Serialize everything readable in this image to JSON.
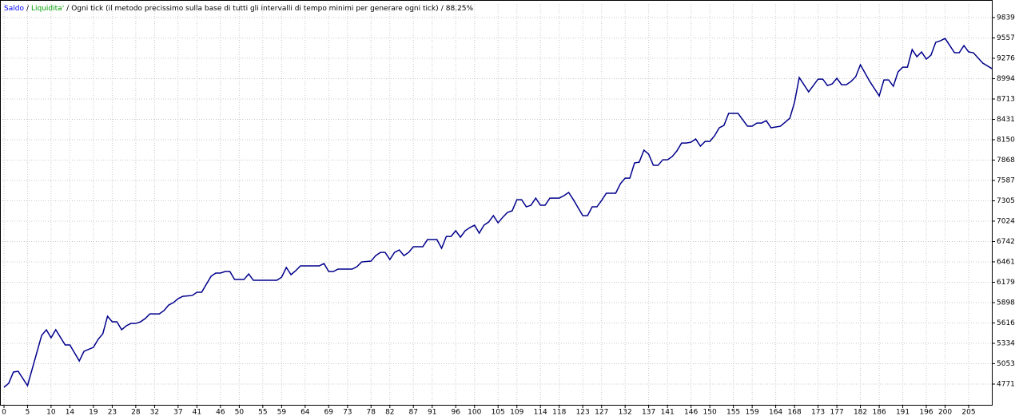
{
  "chart_data": {
    "type": "line",
    "legend": [
      {
        "name": "Saldo",
        "color": "#0000ff"
      },
      {
        "name": "Liquidita'",
        "color": "#00a000"
      }
    ],
    "separator": "/",
    "subtitle": "Ogni tick (il metodo precissimo sulla base di tutti gli intervalli di tempo minimi per generare ogni tick)",
    "quality": "88.25%",
    "x": [
      0,
      1,
      2,
      3,
      5,
      6,
      8,
      9,
      10,
      11,
      13,
      14,
      16,
      17,
      19,
      20,
      21,
      22,
      23,
      24,
      25,
      26,
      27,
      28,
      29,
      30,
      31,
      33,
      34,
      35,
      36,
      37,
      38,
      40,
      41,
      42,
      43,
      44,
      45,
      46,
      47,
      48,
      49,
      51,
      52,
      53,
      58,
      59,
      60,
      61,
      62,
      63,
      67,
      68,
      69,
      70,
      71,
      74,
      75,
      76,
      78,
      79,
      80,
      81,
      82,
      83,
      84,
      85,
      86,
      87,
      89,
      90,
      92,
      93,
      94,
      95,
      96,
      97,
      98,
      99,
      100,
      101,
      102,
      103,
      104,
      105,
      106,
      107,
      108,
      109,
      110,
      111,
      112,
      113,
      114,
      115,
      116,
      118,
      119,
      120,
      121,
      123,
      124,
      125,
      126,
      127,
      128,
      130,
      131,
      132,
      133,
      134,
      135,
      136,
      137,
      138,
      139,
      140,
      141,
      142,
      143,
      144,
      145,
      146,
      147,
      148,
      149,
      150,
      151,
      152,
      153,
      154,
      156,
      158,
      159,
      160,
      161,
      162,
      163,
      165,
      167,
      168,
      169,
      171,
      173,
      174,
      175,
      176,
      177,
      178,
      179,
      180,
      181,
      182,
      184,
      186,
      187,
      188,
      189,
      190,
      191,
      192,
      193,
      194,
      195,
      196,
      197,
      198,
      199,
      200,
      201,
      202,
      203,
      204,
      205,
      206,
      208,
      210
    ],
    "series": [
      {
        "name": "Saldo",
        "color": "#00008b",
        "values": [
          4727,
          4782,
          4937,
          4948,
          4749,
          4981,
          5444,
          5522,
          5411,
          5522,
          5312,
          5312,
          5091,
          5224,
          5279,
          5389,
          5467,
          5709,
          5632,
          5632,
          5522,
          5577,
          5610,
          5610,
          5632,
          5676,
          5742,
          5742,
          5787,
          5864,
          5897,
          5952,
          5985,
          5996,
          6041,
          6041,
          6151,
          6261,
          6306,
          6306,
          6328,
          6328,
          6217,
          6217,
          6294,
          6206,
          6206,
          6250,
          6383,
          6284,
          6339,
          6405,
          6405,
          6438,
          6328,
          6328,
          6361,
          6361,
          6394,
          6460,
          6471,
          6548,
          6592,
          6592,
          6493,
          6592,
          6626,
          6548,
          6592,
          6670,
          6670,
          6769,
          6769,
          6648,
          6813,
          6813,
          6891,
          6802,
          6891,
          6935,
          6968,
          6858,
          6968,
          7012,
          7100,
          7001,
          7078,
          7145,
          7167,
          7321,
          7321,
          7222,
          7244,
          7343,
          7244,
          7244,
          7343,
          7343,
          7377,
          7421,
          7321,
          7100,
          7100,
          7222,
          7222,
          7310,
          7410,
          7410,
          7542,
          7619,
          7619,
          7829,
          7840,
          8006,
          7950,
          7796,
          7796,
          7873,
          7873,
          7917,
          7995,
          8105,
          8105,
          8116,
          8160,
          8061,
          8127,
          8127,
          8204,
          8315,
          8348,
          8514,
          8514,
          8337,
          8337,
          8381,
          8381,
          8414,
          8315,
          8337,
          8447,
          8668,
          9010,
          8812,
          8988,
          8988,
          8900,
          8922,
          9000,
          8911,
          8911,
          8955,
          9021,
          9187,
          8955,
          8756,
          8977,
          8977,
          8889,
          9088,
          9154,
          9154,
          9397,
          9298,
          9364,
          9265,
          9320,
          9496,
          9518,
          9551,
          9452,
          9353,
          9353,
          9452,
          9364,
          9353,
          9210,
          9132
        ]
      }
    ],
    "xlim": [
      -0.85,
      210.1
    ],
    "ylim": [
      4473,
      10027
    ],
    "xticks": [
      0,
      5,
      10,
      14,
      19,
      23,
      28,
      32,
      37,
      41,
      46,
      50,
      55,
      59,
      64,
      69,
      73,
      78,
      82,
      87,
      91,
      96,
      100,
      105,
      109,
      114,
      118,
      123,
      127,
      132,
      137,
      141,
      146,
      150,
      155,
      159,
      164,
      168,
      173,
      177,
      182,
      186,
      191,
      196,
      200,
      205
    ],
    "yticks": [
      4771,
      5053,
      5334,
      5616,
      5898,
      6179,
      6461,
      6742,
      7024,
      7305,
      7587,
      7868,
      8150,
      8431,
      8713,
      8994,
      9276,
      9557,
      9839
    ],
    "grid": true
  }
}
